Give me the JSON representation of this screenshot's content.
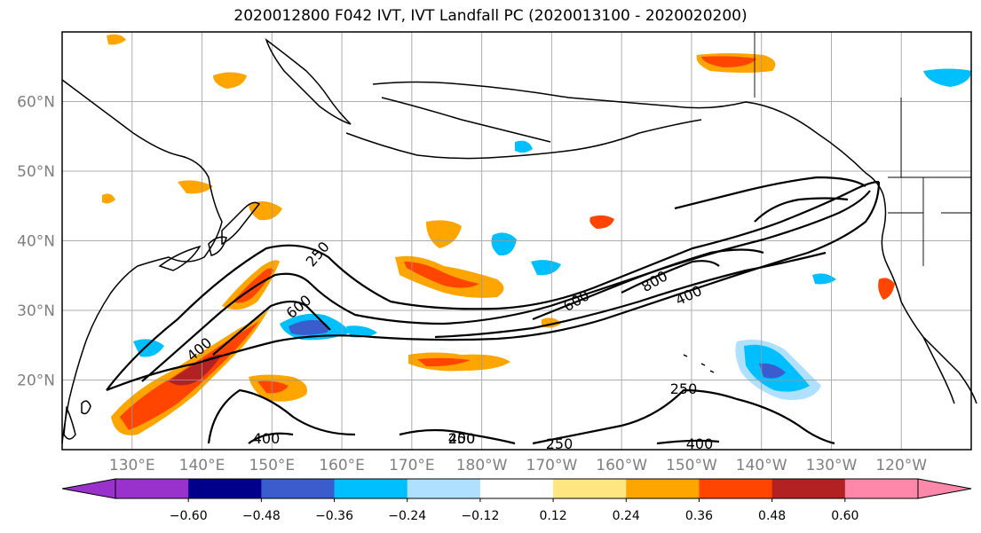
{
  "title": "2020012800 F042 IVT, IVT Landfall PC (2020013100 - 2020020200)",
  "map": {
    "type": "contour-map",
    "projection": "PlateCarree",
    "extent": {
      "lon": [
        120,
        250
      ],
      "lat": [
        10,
        70
      ]
    },
    "lat_ticks": [
      "20°N",
      "30°N",
      "40°N",
      "50°N",
      "60°N"
    ],
    "lon_ticks": [
      "130°E",
      "140°E",
      "150°E",
      "160°E",
      "170°E",
      "180°W",
      "170°W",
      "160°W",
      "150°W",
      "140°W",
      "130°W",
      "120°W"
    ],
    "contour_labels": [
      "250",
      "600",
      "400",
      "800",
      "400",
      "600",
      "400",
      "250",
      "400",
      "250",
      "400",
      "250"
    ]
  },
  "colorbar": {
    "ticks": [
      "−0.60",
      "−0.48",
      "−0.36",
      "−0.24",
      "−0.12",
      "0.12",
      "0.24",
      "0.36",
      "0.48",
      "0.60"
    ],
    "colors": [
      "#9932cc",
      "#00008b",
      "#3a5ccc",
      "#00bfff",
      "#b0e0ff",
      "#ffffff",
      "#ffe680",
      "#ffa500",
      "#ff4500",
      "#b22222",
      "#ff88aa"
    ]
  }
}
